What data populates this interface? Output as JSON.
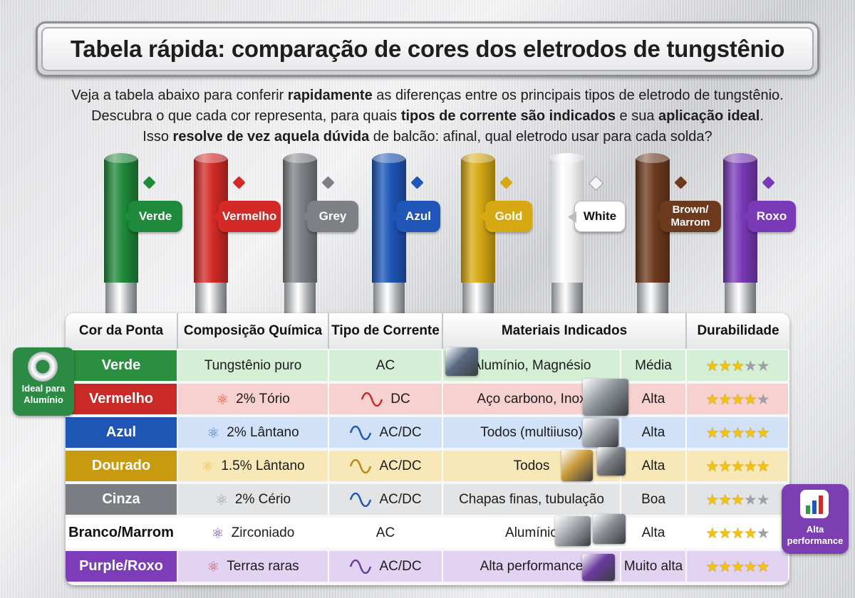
{
  "title": "Tabela rápida: comparação de cores dos eletrodos de tungstênio",
  "intro": {
    "l1a": "Veja a tabela abaixo para conferir ",
    "l1b": "rapidamente",
    "l1c": " as diferenças entre os principais tipos de eletrodo de tungstênio.",
    "l2a": "Descubra o que cada cor representa, para quais ",
    "l2b": "tipos de corrente são indicados",
    "l2c": " e sua ",
    "l2d": "aplicação ideal",
    "l2e": ".",
    "l3a": "Isso ",
    "l3b": "resolve de vez aquela dúvida",
    "l3c": " de balcão: afinal, qual eletrodo usar para cada solda?"
  },
  "electrodes": [
    {
      "label": "Verde",
      "color": "#1f8a3b"
    },
    {
      "label": "Vermelho",
      "color": "#d42a27"
    },
    {
      "label": "Grey",
      "color": "#7d8186"
    },
    {
      "label": "Azul",
      "color": "#1f56b8"
    },
    {
      "label": "Gold",
      "color": "#d6a913"
    },
    {
      "label": "White",
      "color": "#ffffff"
    },
    {
      "label": "Brown/ Marrom",
      "color": "#6e3a1e"
    },
    {
      "label": "Roxo",
      "color": "#7a3ab8"
    }
  ],
  "table": {
    "headers": [
      "Cor da Ponta",
      "Composição Química",
      "Tipo de Corrente",
      "Materiais Indicados",
      "Durabilidade"
    ],
    "rows": [
      {
        "cor": "Verde",
        "comp": "Tungstênio puro",
        "corrente": "AC",
        "materiais": "Alumínio, Magnésio",
        "dur_label": "Média",
        "stars": 3,
        "tip": "#2a8f3f",
        "bg": "#d4efd6"
      },
      {
        "cor": "Vermelho",
        "comp": "2% Tório",
        "corrente": "DC",
        "materiais": "Aço carbono, Inox",
        "dur_label": "Alta",
        "stars": 4,
        "tip": "#c92a26",
        "bg": "#f7d1d0"
      },
      {
        "cor": "Azul",
        "comp": "2% Lântano",
        "corrente": "AC/DC",
        "materiais": "Todos (multiiuso)",
        "dur_label": "Alta",
        "stars": 4.5,
        "tip": "#1f55b5",
        "bg": "#d1e1f7"
      },
      {
        "cor": "Dourado",
        "comp": "1.5% Lântano",
        "corrente": "AC/DC",
        "materiais": "Todos",
        "dur_label": "Alta",
        "stars": 5,
        "tip": "#c89a10",
        "bg": "#f8e8b8"
      },
      {
        "cor": "Cinza",
        "comp": "2% Cério",
        "corrente": "AC/DC",
        "materiais": "Chapas finas, tubulação",
        "dur_label": "Boa",
        "stars": 3,
        "tip": "#7a7e83",
        "bg": "#e3e4e6"
      },
      {
        "cor": "Branco/Marrom",
        "comp": "Zirconiado",
        "corrente": "AC",
        "materiais": "Alumínio",
        "dur_label": "Alta",
        "stars": 4,
        "tip": "#ffffff",
        "bg": "#ffffff"
      },
      {
        "cor": "Purple/Roxo",
        "comp": "Terras raras",
        "corrente": "AC/DC",
        "materiais": "Alta performance",
        "dur_label": "Muito alta",
        "stars": 5,
        "tip": "#7d3db8",
        "bg": "#e3d3f2"
      }
    ]
  },
  "badges": {
    "aluminio": "Ideal para Alumínio",
    "performance": "Alta performance"
  }
}
